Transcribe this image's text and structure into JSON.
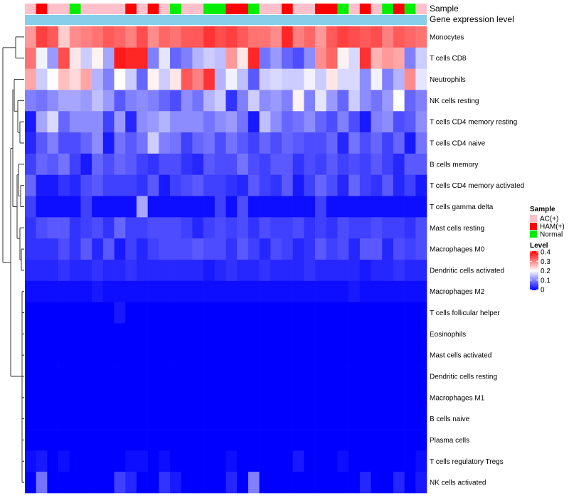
{
  "chart_data": {
    "type": "heatmap",
    "title": "",
    "annotation_labels": [
      "Sample",
      "Gene expression level"
    ],
    "sample_groups": [
      "AC(+)",
      "HAM(+)",
      "AC(+)",
      "AC(+)",
      "Normal",
      "AC(+)",
      "AC(+)",
      "AC(+)",
      "AC(+)",
      "HAM(+)",
      "AC(+)",
      "HAM(+)",
      "AC(+)",
      "Normal",
      "AC(+)",
      "AC(+)",
      "Normal",
      "Normal",
      "HAM(+)",
      "HAM(+)",
      "Normal",
      "AC(+)",
      "AC(+)",
      "HAM(+)",
      "AC(+)",
      "AC(+)",
      "HAM(+)",
      "HAM(+)",
      "Normal",
      "AC(+)",
      "HAM(+)",
      "AC(+)",
      "Normal",
      "HAM(+)",
      "Normal",
      "AC(+)"
    ],
    "group_colors": {
      "AC(+)": "#FFC0CB",
      "HAM(+)": "#FF0000",
      "Normal": "#00EE00"
    },
    "expression_color": "#87CEEB",
    "rows": [
      "Monocytes",
      "T cells CD8",
      "Neutrophils",
      "NK cells resting",
      "T cells CD4 memory resting",
      "T cells CD4 naive",
      "B cells memory",
      "T cells CD4 memory activated",
      "T cells gamma delta",
      "Mast cells resting",
      "Macrophages M0",
      "Dendritic cells activated",
      "Macrophages M2",
      "T cells follicular helper",
      "Eosinophils",
      "Mast cells activated",
      "Dendritic cells resting",
      "Macrophages M1",
      "B cells naive",
      "Plasma cells",
      "T cells regulatory  Tregs",
      "NK cells activated"
    ],
    "row_clusters": [
      [
        0,
        1
      ],
      [
        2,
        3,
        4,
        5
      ],
      [
        6,
        7,
        8,
        9,
        10,
        11
      ],
      [
        12,
        13,
        14,
        15,
        16,
        17,
        18,
        19,
        20,
        21
      ]
    ],
    "row_values": [
      [
        0.28,
        0.35,
        0.33,
        0.24,
        0.29,
        0.3,
        0.31,
        0.33,
        0.32,
        0.3,
        0.34,
        0.29,
        0.32,
        0.31,
        0.33,
        0.33,
        0.36,
        0.34,
        0.35,
        0.33,
        0.31,
        0.31,
        0.29,
        0.37,
        0.3,
        0.32,
        0.28,
        0.33,
        0.35,
        0.34,
        0.33,
        0.34,
        0.3,
        0.33,
        0.32,
        0.31
      ],
      [
        0.31,
        0.19,
        0.12,
        0.34,
        0.22,
        0.16,
        0.21,
        0.13,
        0.38,
        0.37,
        0.37,
        0.1,
        0.18,
        0.08,
        0.1,
        0.14,
        0.16,
        0.15,
        0.28,
        0.22,
        0.37,
        0.09,
        0.12,
        0.08,
        0.06,
        0.11,
        0.29,
        0.32,
        0.21,
        0.17,
        0.36,
        0.26,
        0.28,
        0.27,
        0.1,
        0.16
      ],
      [
        0.27,
        0.16,
        0.2,
        0.25,
        0.23,
        0.27,
        0.14,
        0.1,
        0.2,
        0.16,
        0.08,
        0.21,
        0.16,
        0.22,
        0.33,
        0.3,
        0.36,
        0.14,
        0.19,
        0.15,
        0.07,
        0.16,
        0.17,
        0.16,
        0.16,
        0.19,
        0.16,
        0.22,
        0.17,
        0.17,
        0.11,
        0.19,
        0.1,
        0.14,
        0.29,
        0.18
      ],
      [
        0.1,
        0.09,
        0.11,
        0.13,
        0.13,
        0.12,
        0.15,
        0.12,
        0.07,
        0.1,
        0.11,
        0.1,
        0.08,
        0.06,
        0.11,
        0.09,
        0.14,
        0.16,
        0.04,
        0.1,
        0.16,
        0.11,
        0.12,
        0.1,
        0.21,
        0.1,
        0.18,
        0.12,
        0.08,
        0.16,
        0.11,
        0.09,
        0.12,
        0.2,
        0.08,
        0.1
      ],
      [
        0.02,
        0.13,
        0.17,
        0.08,
        0.11,
        0.11,
        0.11,
        0.05,
        0.12,
        0.03,
        0.11,
        0.12,
        0.14,
        0.11,
        0.11,
        0.11,
        0.09,
        0.11,
        0.12,
        0.09,
        0.02,
        0.15,
        0.11,
        0.08,
        0.09,
        0.11,
        0.08,
        0.06,
        0.1,
        0.06,
        0.02,
        0.1,
        0.11,
        0.06,
        0.07,
        0.11
      ],
      [
        0.03,
        0.07,
        0.1,
        0.06,
        0.06,
        0.08,
        0.11,
        0.02,
        0.09,
        0.07,
        0.09,
        0.16,
        0.1,
        0.09,
        0.05,
        0.08,
        0.09,
        0.06,
        0.09,
        0.07,
        0.05,
        0.08,
        0.06,
        0.08,
        0.07,
        0.06,
        0.06,
        0.08,
        0.03,
        0.09,
        0.06,
        0.08,
        0.05,
        0.08,
        0.02,
        0.09
      ],
      [
        0.05,
        0.08,
        0.07,
        0.09,
        0.05,
        0.02,
        0.08,
        0.06,
        0.08,
        0.07,
        0.05,
        0.04,
        0.06,
        0.06,
        0.04,
        0.03,
        0.07,
        0.06,
        0.06,
        0.09,
        0.06,
        0.05,
        0.07,
        0.07,
        0.04,
        0.06,
        0.05,
        0.07,
        0.05,
        0.06,
        0.05,
        0.07,
        0.05,
        0.03,
        0.07,
        0.07
      ],
      [
        0.08,
        0.02,
        0.02,
        0.04,
        0.03,
        0.06,
        0.07,
        0.05,
        0.05,
        0.05,
        0.04,
        0.07,
        0.02,
        0.05,
        0.06,
        0.07,
        0.05,
        0.05,
        0.04,
        0.03,
        0.07,
        0.05,
        0.04,
        0.07,
        0.02,
        0.05,
        0.08,
        0.06,
        0.03,
        0.08,
        0.05,
        0.04,
        0.07,
        0.03,
        0.05,
        0.02
      ],
      [
        0.05,
        0.01,
        0.01,
        0.01,
        0.01,
        0.05,
        0.01,
        0.01,
        0.01,
        0.01,
        0.13,
        0.01,
        0.01,
        0.01,
        0.01,
        0.01,
        0.01,
        0.05,
        0.01,
        0.06,
        0.01,
        0.01,
        0.01,
        0.01,
        0.01,
        0.01,
        0.05,
        0.01,
        0.01,
        0.01,
        0.01,
        0.01,
        0.01,
        0.01,
        0.01,
        0.01
      ],
      [
        0.04,
        0.06,
        0.07,
        0.07,
        0.04,
        0.05,
        0.06,
        0.04,
        0.08,
        0.05,
        0.05,
        0.06,
        0.06,
        0.06,
        0.05,
        0.03,
        0.05,
        0.06,
        0.05,
        0.06,
        0.04,
        0.06,
        0.05,
        0.05,
        0.06,
        0.04,
        0.05,
        0.04,
        0.06,
        0.05,
        0.05,
        0.06,
        0.05,
        0.05,
        0.04,
        0.06
      ],
      [
        0.04,
        0.04,
        0.04,
        0.06,
        0.04,
        0.07,
        0.03,
        0.07,
        0.02,
        0.05,
        0.03,
        0.05,
        0.06,
        0.06,
        0.06,
        0.07,
        0.06,
        0.06,
        0.04,
        0.07,
        0.05,
        0.03,
        0.06,
        0.05,
        0.03,
        0.04,
        0.07,
        0.05,
        0.06,
        0.03,
        0.07,
        0.07,
        0.03,
        0.06,
        0.05,
        0.06
      ],
      [
        0.03,
        0.03,
        0.03,
        0.04,
        0.03,
        0.03,
        0.04,
        0.03,
        0.03,
        0.04,
        0.03,
        0.03,
        0.03,
        0.03,
        0.03,
        0.03,
        0.02,
        0.03,
        0.04,
        0.03,
        0.03,
        0.04,
        0.03,
        0.03,
        0.03,
        0.04,
        0.03,
        0.03,
        0.03,
        0.03,
        0.02,
        0.03,
        0.03,
        0.04,
        0.03,
        0.03
      ],
      [
        0.01,
        0.01,
        0.01,
        0.01,
        0.01,
        0.01,
        0.02,
        0.01,
        0.01,
        0.01,
        0.01,
        0.01,
        0.01,
        0.01,
        0.01,
        0.01,
        0.01,
        0.01,
        0.01,
        0.01,
        0.01,
        0.01,
        0.01,
        0.01,
        0.01,
        0.01,
        0.01,
        0.01,
        0.01,
        0.02,
        0.01,
        0.01,
        0.01,
        0.01,
        0.01,
        0.01
      ],
      [
        0.0,
        0.0,
        0.0,
        0.0,
        0.0,
        0.0,
        0.0,
        0.0,
        0.02,
        0.0,
        0.0,
        0.0,
        0.0,
        0.0,
        0.0,
        0.0,
        0.0,
        0.0,
        0.0,
        0.0,
        0.0,
        0.0,
        0.0,
        0.0,
        0.0,
        0.0,
        0.0,
        0.0,
        0.0,
        0.0,
        0.0,
        0.0,
        0.0,
        0.0,
        0.0,
        0.0
      ],
      [
        0.0,
        0.0,
        0.0,
        0.0,
        0.0,
        0.0,
        0.0,
        0.0,
        0.0,
        0.0,
        0.0,
        0.0,
        0.0,
        0.0,
        0.0,
        0.0,
        0.0,
        0.0,
        0.0,
        0.0,
        0.0,
        0.0,
        0.0,
        0.0,
        0.0,
        0.0,
        0.0,
        0.0,
        0.0,
        0.0,
        0.0,
        0.0,
        0.0,
        0.0,
        0.0,
        0.0
      ],
      [
        0.0,
        0.0,
        0.0,
        0.0,
        0.0,
        0.0,
        0.0,
        0.0,
        0.0,
        0.0,
        0.0,
        0.0,
        0.0,
        0.0,
        0.0,
        0.0,
        0.0,
        0.0,
        0.0,
        0.0,
        0.0,
        0.0,
        0.0,
        0.0,
        0.0,
        0.0,
        0.0,
        0.0,
        0.0,
        0.0,
        0.0,
        0.0,
        0.0,
        0.0,
        0.0,
        0.0
      ],
      [
        0.0,
        0.0,
        0.0,
        0.0,
        0.0,
        0.0,
        0.0,
        0.0,
        0.0,
        0.0,
        0.0,
        0.0,
        0.0,
        0.0,
        0.0,
        0.0,
        0.0,
        0.0,
        0.0,
        0.0,
        0.0,
        0.0,
        0.0,
        0.0,
        0.0,
        0.0,
        0.0,
        0.0,
        0.0,
        0.0,
        0.0,
        0.0,
        0.0,
        0.0,
        0.0,
        0.0
      ],
      [
        0.0,
        0.0,
        0.0,
        0.0,
        0.0,
        0.0,
        0.0,
        0.0,
        0.0,
        0.0,
        0.0,
        0.0,
        0.0,
        0.0,
        0.0,
        0.0,
        0.0,
        0.0,
        0.0,
        0.0,
        0.0,
        0.0,
        0.0,
        0.0,
        0.0,
        0.0,
        0.0,
        0.0,
        0.0,
        0.0,
        0.0,
        0.0,
        0.0,
        0.0,
        0.0,
        0.0
      ],
      [
        0.0,
        0.0,
        0.0,
        0.0,
        0.0,
        0.0,
        0.0,
        0.0,
        0.0,
        0.0,
        0.0,
        0.0,
        0.0,
        0.0,
        0.0,
        0.0,
        0.0,
        0.0,
        0.0,
        0.0,
        0.0,
        0.0,
        0.0,
        0.0,
        0.0,
        0.0,
        0.0,
        0.0,
        0.0,
        0.0,
        0.0,
        0.0,
        0.0,
        0.0,
        0.0,
        0.0
      ],
      [
        0.0,
        0.0,
        0.0,
        0.0,
        0.0,
        0.0,
        0.0,
        0.0,
        0.0,
        0.0,
        0.0,
        0.0,
        0.0,
        0.0,
        0.0,
        0.0,
        0.0,
        0.0,
        0.0,
        0.0,
        0.0,
        0.0,
        0.0,
        0.0,
        0.0,
        0.0,
        0.0,
        0.0,
        0.0,
        0.0,
        0.0,
        0.0,
        0.0,
        0.0,
        0.0,
        0.0
      ],
      [
        0.01,
        0.02,
        0.0,
        0.01,
        0.0,
        0.0,
        0.0,
        0.0,
        0.0,
        0.01,
        0.01,
        0.0,
        0.01,
        0.0,
        0.0,
        0.0,
        0.0,
        0.0,
        0.01,
        0.0,
        0.0,
        0.0,
        0.0,
        0.0,
        0.02,
        0.0,
        0.0,
        0.0,
        0.01,
        0.0,
        0.0,
        0.0,
        0.0,
        0.0,
        0.0,
        0.01
      ],
      [
        0.0,
        0.09,
        0.0,
        0.0,
        0.0,
        0.0,
        0.0,
        0.0,
        0.05,
        0.03,
        0.0,
        0.0,
        0.04,
        0.02,
        0.0,
        0.0,
        0.0,
        0.0,
        0.03,
        0.0,
        0.1,
        0.0,
        0.0,
        0.0,
        0.0,
        0.0,
        0.0,
        0.0,
        0.0,
        0.0,
        0.03,
        0.0,
        0.0,
        0.03,
        0.0,
        0.02
      ]
    ],
    "color_scale": {
      "min": 0,
      "max": 0.4,
      "low": "#0000FF",
      "mid": "#FFFFFF",
      "high": "#FF0000",
      "mid_value": 0.2
    },
    "legend": {
      "sample_title": "Sample",
      "sample_entries": [
        "AC(+)",
        "HAM(+)",
        "Normal"
      ],
      "level_title": "Level",
      "level_ticks": [
        "0.4",
        "0.3",
        "0.2",
        "0.1",
        "0"
      ]
    }
  }
}
